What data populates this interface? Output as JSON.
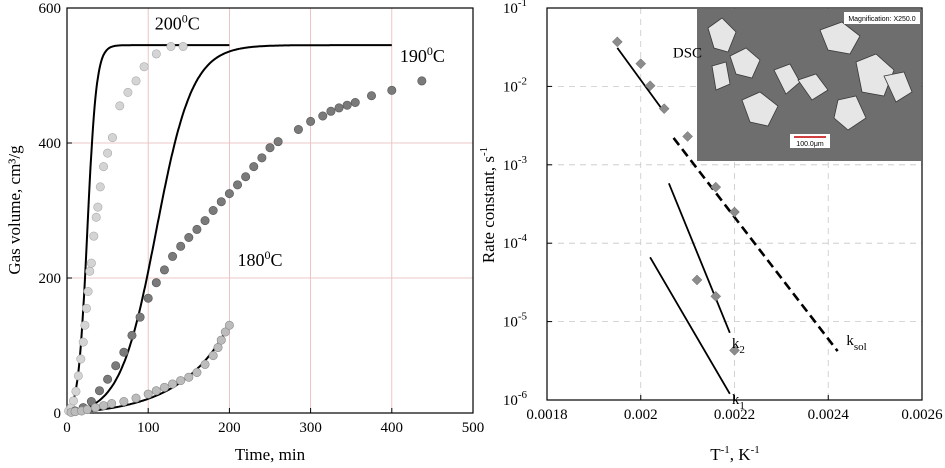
{
  "chart_data": [
    {
      "type": "scatter",
      "xlabel": "Time, min",
      "ylabel": "Gas volume, cm³/g",
      "xlim": [
        0,
        500
      ],
      "ylim": [
        0,
        600
      ],
      "xticks": [
        "0",
        "100",
        "200",
        "300",
        "400",
        "500"
      ],
      "yticks": [
        "0",
        "200",
        "400",
        "600"
      ],
      "grid": true,
      "annotations": [
        {
          "id": "t200",
          "base": "200",
          "sup": "0",
          "tail": "C",
          "x": 108,
          "y": 568
        },
        {
          "id": "t190",
          "base": "190",
          "sup": "0",
          "tail": "C",
          "x": 410,
          "y": 520
        },
        {
          "id": "t180",
          "base": "180",
          "sup": "0",
          "tail": "C",
          "x": 210,
          "y": 218
        }
      ],
      "series": [
        {
          "key": "s200",
          "color": "#d4d4d4",
          "stroke": "#aaaaaa",
          "points": [
            [
              2,
              3
            ],
            [
              5,
              8
            ],
            [
              8,
              18
            ],
            [
              11,
              32
            ],
            [
              14,
              55
            ],
            [
              17,
              80
            ],
            [
              20,
              105
            ],
            [
              22,
              130
            ],
            [
              24,
              155
            ],
            [
              26,
              180
            ],
            [
              28,
              210
            ],
            [
              30,
              222
            ],
            [
              33,
              262
            ],
            [
              36,
              290
            ],
            [
              38,
              305
            ],
            [
              41,
              335
            ],
            [
              45,
              365
            ],
            [
              50,
              385
            ],
            [
              56,
              408
            ],
            [
              65,
              455
            ],
            [
              75,
              475
            ],
            [
              85,
              492
            ],
            [
              95,
              513
            ],
            [
              110,
              532
            ],
            [
              128,
              543
            ],
            [
              143,
              543
            ]
          ]
        },
        {
          "key": "s190",
          "color": "#7a7a7a",
          "stroke": "#555555",
          "points": [
            [
              10,
              3
            ],
            [
              20,
              8
            ],
            [
              30,
              17
            ],
            [
              40,
              33
            ],
            [
              50,
              50
            ],
            [
              60,
              70
            ],
            [
              70,
              90
            ],
            [
              80,
              115
            ],
            [
              90,
              142
            ],
            [
              100,
              170
            ],
            [
              110,
              193
            ],
            [
              120,
              212
            ],
            [
              130,
              232
            ],
            [
              140,
              247
            ],
            [
              150,
              260
            ],
            [
              160,
              272
            ],
            [
              170,
              285
            ],
            [
              180,
              300
            ],
            [
              190,
              313
            ],
            [
              200,
              325
            ],
            [
              210,
              338
            ],
            [
              220,
              350
            ],
            [
              230,
              365
            ],
            [
              240,
              378
            ],
            [
              250,
              393
            ],
            [
              260,
              402
            ],
            [
              285,
              420
            ],
            [
              300,
              432
            ],
            [
              315,
              440
            ],
            [
              325,
              447
            ],
            [
              335,
              452
            ],
            [
              345,
              456
            ],
            [
              355,
              460
            ],
            [
              375,
              470
            ],
            [
              400,
              478
            ],
            [
              437,
              492
            ]
          ]
        },
        {
          "key": "s180",
          "color": "#bcbcbc",
          "stroke": "#8a8a8a",
          "points": [
            [
              5,
              1
            ],
            [
              10,
              2
            ],
            [
              18,
              3
            ],
            [
              25,
              5
            ],
            [
              35,
              8
            ],
            [
              45,
              11
            ],
            [
              55,
              14
            ],
            [
              70,
              17
            ],
            [
              85,
              22
            ],
            [
              100,
              28
            ],
            [
              110,
              33
            ],
            [
              120,
              38
            ],
            [
              130,
              43
            ],
            [
              140,
              48
            ],
            [
              150,
              53
            ],
            [
              160,
              60
            ],
            [
              170,
              72
            ],
            [
              180,
              85
            ],
            [
              186,
              97
            ],
            [
              190,
              108
            ],
            [
              195,
              120
            ],
            [
              200,
              130
            ]
          ]
        }
      ],
      "fits": [
        {
          "key": "f200",
          "plateau": 545,
          "k": 0.18,
          "mid": 25,
          "xmax": 200
        },
        {
          "key": "f190",
          "plateau": 545,
          "k": 0.045,
          "mid": 110,
          "xmax": 400
        },
        {
          "key": "f180",
          "exp_a": 5.0,
          "exp_b": 0.0165,
          "xmax": 200
        }
      ]
    },
    {
      "type": "scatter",
      "xlabel_base": "T",
      "xlabel_sup": "-1",
      "xlabel_tail": ", K",
      "xlabel_sup2": "-1",
      "ylabel_base": "Rate constant, s",
      "ylabel_sup": "-1",
      "xlim": [
        0.0018,
        0.0026
      ],
      "ylim_log10": [
        -6,
        -1
      ],
      "xticks": [
        "0.0018",
        "0.002",
        "0.0022",
        "0.0024",
        "0.0026"
      ],
      "ytick_mantissa": "10",
      "ytick_exps": [
        "-6",
        "-5",
        "-4",
        "-3",
        "-2",
        "-1"
      ],
      "grid": true,
      "points": [
        [
          0.00195,
          0.037
        ],
        [
          0.002,
          0.0195
        ],
        [
          0.00202,
          0.0102
        ],
        [
          0.00205,
          0.0052
        ],
        [
          0.0021,
          0.0023
        ],
        [
          0.00212,
          3.4e-05
        ],
        [
          0.00216,
          0.00052
        ],
        [
          0.00216,
          2.1e-05
        ],
        [
          0.0022,
          0.00025
        ],
        [
          0.0022,
          4.3e-06
        ]
      ],
      "lines": [
        {
          "key": "dsc",
          "dash": false,
          "p1": [
            0.00195,
            0.031
          ],
          "p2": [
            0.00205,
            0.0047
          ]
        },
        {
          "key": "ksol",
          "dash": true,
          "p1": [
            0.00207,
            0.0022
          ],
          "p2": [
            0.00242,
            4.2e-06
          ]
        },
        {
          "key": "k2",
          "dash": false,
          "p1": [
            0.00206,
            0.00058
          ],
          "p2": [
            0.00219,
            7.2e-06
          ]
        },
        {
          "key": "k1",
          "dash": false,
          "p1": [
            0.00202,
            6.6e-05
          ],
          "p2": [
            0.00219,
            1.2e-06
          ]
        }
      ],
      "labels": {
        "dsc": "DSC",
        "k2_base": "k",
        "k2_sub": "2",
        "k1_base": "k",
        "k1_sub": "1",
        "ksol_base": "k",
        "ksol_sub": "sol"
      },
      "inset": {
        "magnification": "Magnification: X250.0",
        "scalebar": "100.0μm"
      }
    }
  ]
}
